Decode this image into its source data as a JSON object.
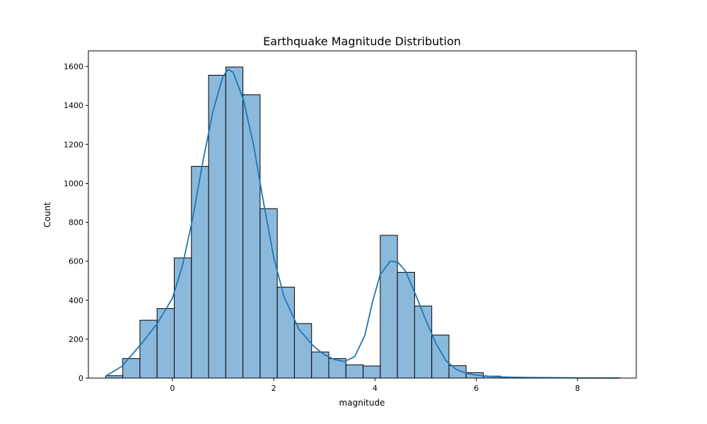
{
  "chart_data": {
    "type": "bar",
    "title": "Earthquake Magnitude Distribution",
    "xlabel": "magnitude",
    "ylabel": "Count",
    "xlim": [
      -1.66,
      9.16
    ],
    "ylim": [
      0,
      1680
    ],
    "x_ticks": [
      0,
      2,
      4,
      6,
      8
    ],
    "y_ticks": [
      0,
      200,
      400,
      600,
      800,
      1000,
      1200,
      1400,
      1600
    ],
    "bin_start": -1.32,
    "bin_width": 0.339,
    "values": [
      12,
      100,
      297,
      357,
      617,
      1087,
      1555,
      1597,
      1455,
      870,
      467,
      280,
      134,
      100,
      68,
      62,
      733,
      543,
      370,
      221,
      64,
      28,
      10,
      5,
      3,
      2,
      2,
      1,
      1,
      1
    ],
    "kde": {
      "x": [
        -1.32,
        -1.0,
        -0.6,
        -0.3,
        0.0,
        0.2,
        0.4,
        0.6,
        0.8,
        1.0,
        1.1,
        1.2,
        1.4,
        1.6,
        1.8,
        2.0,
        2.2,
        2.5,
        2.8,
        3.0,
        3.2,
        3.4,
        3.6,
        3.8,
        3.95,
        4.1,
        4.3,
        4.45,
        4.6,
        4.8,
        5.0,
        5.2,
        5.4,
        5.6,
        5.8,
        6.0,
        6.3,
        6.6,
        7.0,
        7.5,
        8.0,
        8.8
      ],
      "y": [
        10,
        60,
        180,
        280,
        410,
        580,
        820,
        1110,
        1370,
        1550,
        1585,
        1570,
        1430,
        1200,
        900,
        620,
        420,
        250,
        160,
        120,
        95,
        85,
        110,
        220,
        390,
        530,
        600,
        595,
        550,
        430,
        300,
        180,
        90,
        45,
        25,
        15,
        8,
        5,
        3,
        2,
        1,
        0
      ]
    }
  }
}
